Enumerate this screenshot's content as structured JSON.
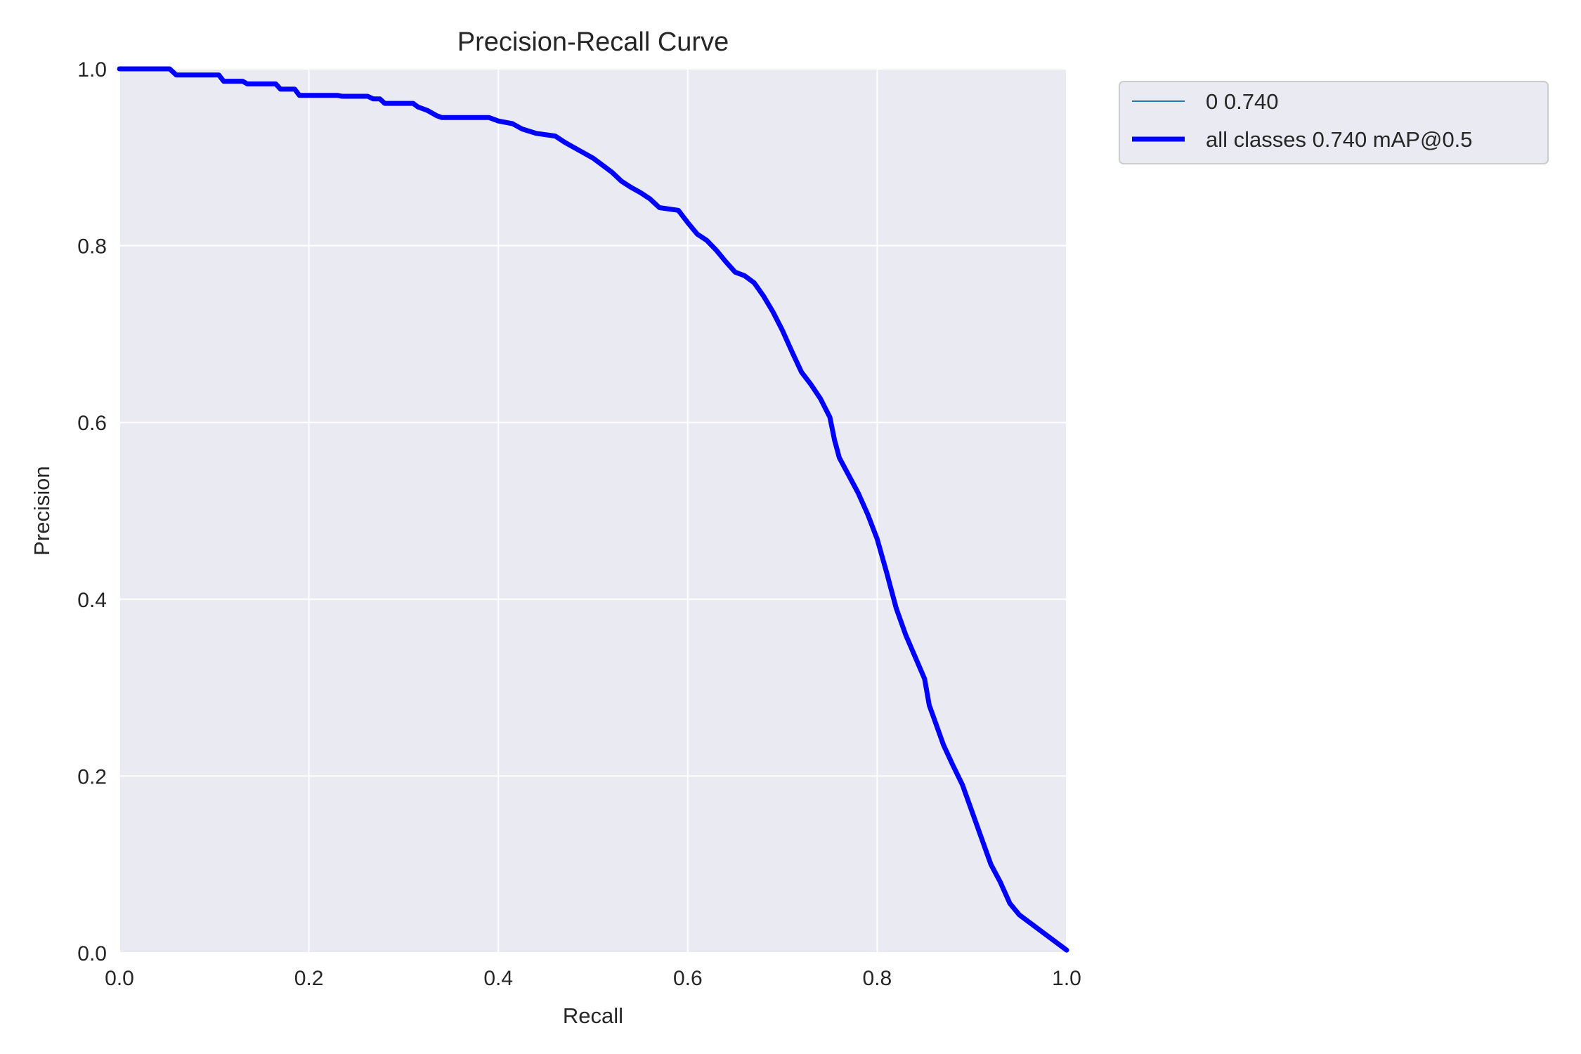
{
  "chart_data": {
    "type": "line",
    "title": "Precision-Recall Curve",
    "xlabel": "Recall",
    "ylabel": "Precision",
    "xlim": [
      0,
      1
    ],
    "ylim": [
      0,
      1
    ],
    "xticks": [
      "0.0",
      "0.2",
      "0.4",
      "0.6",
      "0.8",
      "1.0"
    ],
    "yticks": [
      "0.0",
      "0.2",
      "0.4",
      "0.6",
      "0.8",
      "1.0"
    ],
    "grid": true,
    "legend_position": "outside-top-right",
    "background": "#EAEAF2",
    "series": [
      {
        "name": "0 0.740",
        "color": "#1f77b4",
        "style": "thin",
        "x": [
          0.0,
          0.053,
          0.06,
          0.105,
          0.11,
          0.13,
          0.135,
          0.165,
          0.17,
          0.185,
          0.19,
          0.23,
          0.235,
          0.262,
          0.268,
          0.275,
          0.28,
          0.31,
          0.315,
          0.325,
          0.335,
          0.34,
          0.39,
          0.4,
          0.415,
          0.425,
          0.44,
          0.46,
          0.47,
          0.48,
          0.49,
          0.5,
          0.51,
          0.52,
          0.53,
          0.54,
          0.55,
          0.56,
          0.57,
          0.59,
          0.6,
          0.61,
          0.62,
          0.63,
          0.64,
          0.65,
          0.66,
          0.67,
          0.68,
          0.69,
          0.7,
          0.71,
          0.72,
          0.73,
          0.74,
          0.75,
          0.755,
          0.76,
          0.77,
          0.78,
          0.79,
          0.8,
          0.81,
          0.815,
          0.82,
          0.83,
          0.84,
          0.85,
          0.855,
          0.86,
          0.87,
          0.88,
          0.89,
          0.9,
          0.91,
          0.92,
          0.93,
          0.94,
          0.95,
          1.0
        ],
        "y": [
          1.0,
          1.0,
          0.993,
          0.993,
          0.986,
          0.986,
          0.983,
          0.983,
          0.977,
          0.977,
          0.97,
          0.97,
          0.969,
          0.969,
          0.966,
          0.966,
          0.961,
          0.961,
          0.957,
          0.953,
          0.947,
          0.945,
          0.945,
          0.941,
          0.938,
          0.932,
          0.927,
          0.924,
          0.917,
          0.911,
          0.905,
          0.899,
          0.891,
          0.883,
          0.873,
          0.866,
          0.86,
          0.853,
          0.843,
          0.84,
          0.826,
          0.813,
          0.806,
          0.795,
          0.782,
          0.77,
          0.766,
          0.758,
          0.743,
          0.725,
          0.704,
          0.68,
          0.657,
          0.643,
          0.627,
          0.606,
          0.58,
          0.56,
          0.54,
          0.52,
          0.496,
          0.468,
          0.43,
          0.41,
          0.39,
          0.36,
          0.335,
          0.31,
          0.28,
          0.265,
          0.235,
          0.212,
          0.19,
          0.16,
          0.13,
          0.1,
          0.08,
          0.056,
          0.043,
          0.003
        ]
      },
      {
        "name": "all classes 0.740 mAP@0.5",
        "color": "#0000FF",
        "style": "thick",
        "x": [
          0.0,
          0.053,
          0.06,
          0.105,
          0.11,
          0.13,
          0.135,
          0.165,
          0.17,
          0.185,
          0.19,
          0.23,
          0.235,
          0.262,
          0.268,
          0.275,
          0.28,
          0.31,
          0.315,
          0.325,
          0.335,
          0.34,
          0.39,
          0.4,
          0.415,
          0.425,
          0.44,
          0.46,
          0.47,
          0.48,
          0.49,
          0.5,
          0.51,
          0.52,
          0.53,
          0.54,
          0.55,
          0.56,
          0.57,
          0.59,
          0.6,
          0.61,
          0.62,
          0.63,
          0.64,
          0.65,
          0.66,
          0.67,
          0.68,
          0.69,
          0.7,
          0.71,
          0.72,
          0.73,
          0.74,
          0.75,
          0.755,
          0.76,
          0.77,
          0.78,
          0.79,
          0.8,
          0.81,
          0.815,
          0.82,
          0.83,
          0.84,
          0.85,
          0.855,
          0.86,
          0.87,
          0.88,
          0.89,
          0.9,
          0.91,
          0.92,
          0.93,
          0.94,
          0.95,
          1.0
        ],
        "y": [
          1.0,
          1.0,
          0.993,
          0.993,
          0.986,
          0.986,
          0.983,
          0.983,
          0.977,
          0.977,
          0.97,
          0.97,
          0.969,
          0.969,
          0.966,
          0.966,
          0.961,
          0.961,
          0.957,
          0.953,
          0.947,
          0.945,
          0.945,
          0.941,
          0.938,
          0.932,
          0.927,
          0.924,
          0.917,
          0.911,
          0.905,
          0.899,
          0.891,
          0.883,
          0.873,
          0.866,
          0.86,
          0.853,
          0.843,
          0.84,
          0.826,
          0.813,
          0.806,
          0.795,
          0.782,
          0.77,
          0.766,
          0.758,
          0.743,
          0.725,
          0.704,
          0.68,
          0.657,
          0.643,
          0.627,
          0.606,
          0.58,
          0.56,
          0.54,
          0.52,
          0.496,
          0.468,
          0.43,
          0.41,
          0.39,
          0.36,
          0.335,
          0.31,
          0.28,
          0.265,
          0.235,
          0.212,
          0.19,
          0.16,
          0.13,
          0.1,
          0.08,
          0.056,
          0.043,
          0.003
        ]
      }
    ]
  }
}
